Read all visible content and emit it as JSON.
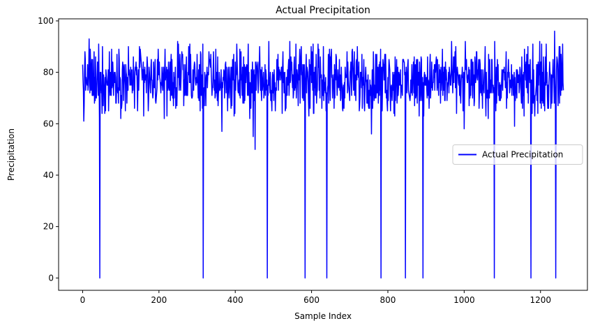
{
  "chart_data": {
    "type": "line",
    "title": "Actual Precipitation",
    "xlabel": "Sample Index",
    "ylabel": "Precipitation",
    "xlim": [
      -63,
      1323
    ],
    "ylim": [
      -4.8,
      100.8
    ],
    "xticks": [
      0,
      200,
      400,
      600,
      800,
      1000,
      1200
    ],
    "yticks": [
      0,
      20,
      40,
      60,
      80,
      100
    ],
    "grid": false,
    "legend_position": "center-right",
    "n_points": 1261,
    "series": [
      {
        "name": "Actual Precipitation",
        "color": "#0000ff",
        "baseline_range": [
          62,
          93
        ],
        "baseline_mean": 77,
        "zero_drops_at": [
          45,
          316,
          484,
          583,
          640,
          782,
          846,
          892,
          1079,
          1175,
          1240
        ],
        "low_dips": [
          {
            "x": 3,
            "y": 61
          },
          {
            "x": 447,
            "y": 55
          },
          {
            "x": 452,
            "y": 50
          },
          {
            "x": 365,
            "y": 57
          },
          {
            "x": 757,
            "y": 56
          },
          {
            "x": 1000,
            "y": 58
          },
          {
            "x": 1132,
            "y": 59
          }
        ],
        "high_peaks": [
          {
            "x": 17,
            "y": 93
          },
          {
            "x": 42,
            "y": 91
          },
          {
            "x": 1237,
            "y": 96
          },
          {
            "x": 1258,
            "y": 91
          }
        ]
      }
    ]
  }
}
